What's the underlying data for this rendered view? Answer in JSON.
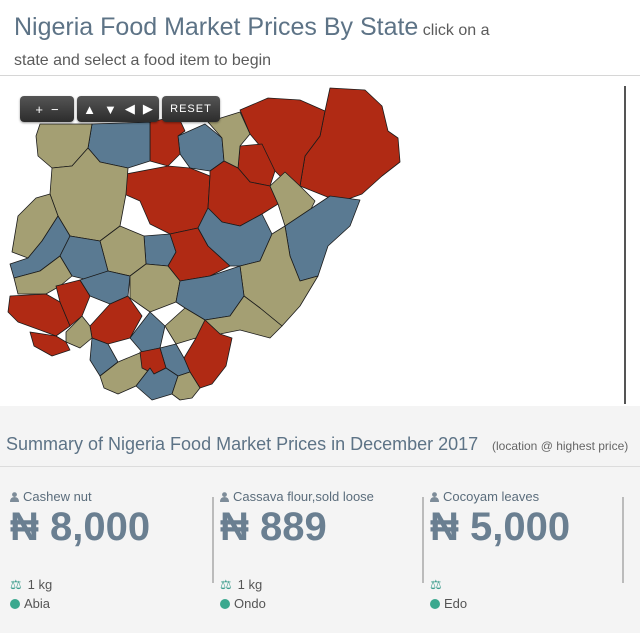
{
  "header": {
    "title": "Nigeria Food Market Prices By State",
    "subtitle": " click on a state and select a food item to begin"
  },
  "map": {
    "controls": {
      "zoom_in": "+",
      "zoom_out": "−",
      "up": "▲",
      "down": "▼",
      "left": "◀",
      "right": "▶",
      "reset": "RESET"
    },
    "colors": {
      "high": "#b02a14",
      "mid": "#a49f73",
      "low": "#5a7a92",
      "stroke": "#1b1b1b"
    }
  },
  "summary": {
    "title": "Summary of Nigeria Food Market Prices in December 2017",
    "note": "(location @ highest price)"
  },
  "cards": [
    {
      "name": "Cashew nut",
      "price": "₦ 8,000",
      "unit": "1 kg",
      "location": "Abia"
    },
    {
      "name": "Cassava flour,sold loose",
      "price": "₦ 889",
      "unit": "1 kg",
      "location": "Ondo"
    },
    {
      "name": "Cocoyam leaves",
      "price": "₦ 5,000",
      "unit": "",
      "location": "Edo"
    }
  ]
}
